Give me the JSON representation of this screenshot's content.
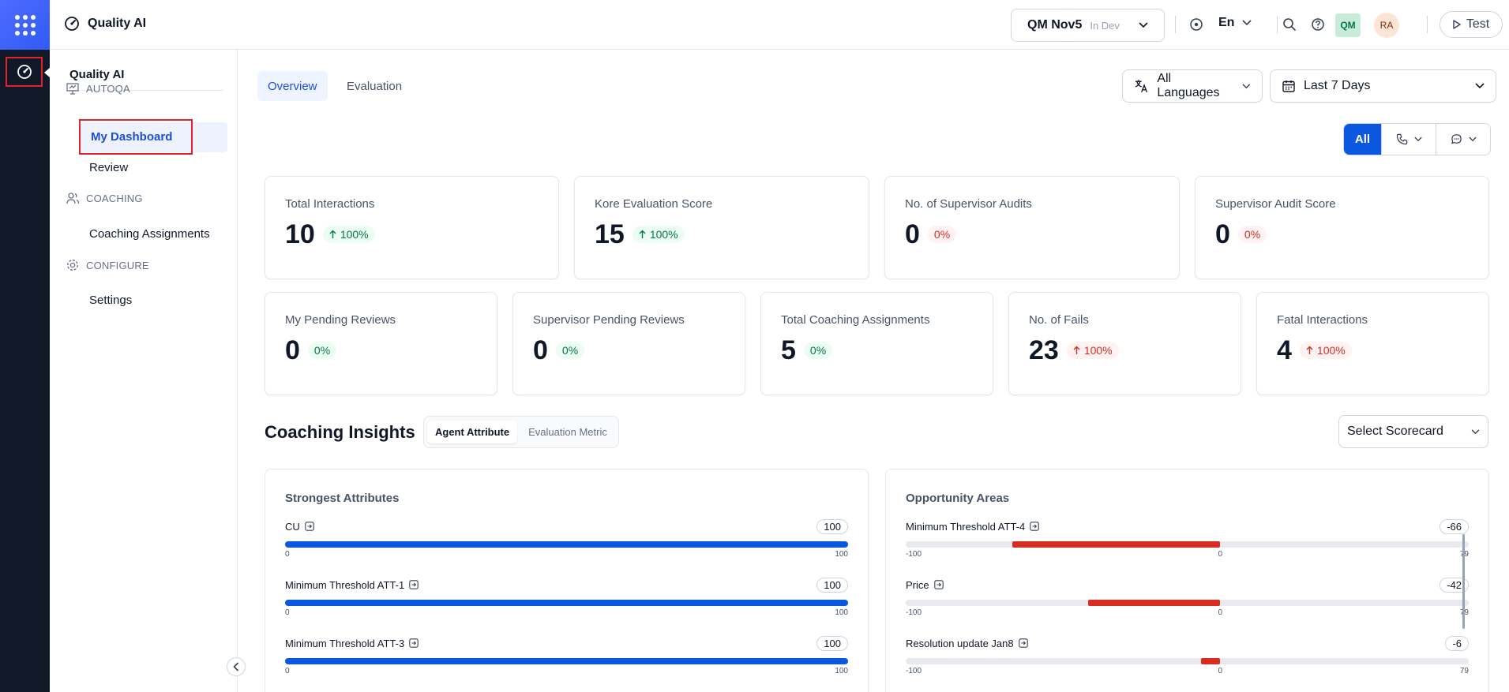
{
  "app": {
    "title": "Quality AI"
  },
  "env": {
    "name": "QM Nov5",
    "tag": "In Dev"
  },
  "topbar": {
    "language": "En",
    "avatar_qm": "QM",
    "avatar_ra": "RA",
    "test_label": "Test"
  },
  "sidebar": {
    "title": "Quality AI",
    "sections": [
      {
        "label": "AUTOQA",
        "icon": "presentation-icon"
      },
      {
        "label": "COACHING",
        "icon": "users-icon"
      },
      {
        "label": "CONFIGURE",
        "icon": "gear-icon"
      }
    ],
    "items": {
      "dashboard": "My Dashboard",
      "review": "Review",
      "coaching_assignments": "Coaching Assignments",
      "settings": "Settings"
    }
  },
  "tabs": [
    "Overview",
    "Evaluation"
  ],
  "filters": {
    "language": "All Languages",
    "date": "Last 7 Days"
  },
  "channel": {
    "all": "All"
  },
  "cards": [
    {
      "label": "Total Interactions",
      "value": "10",
      "change": "100%",
      "trend": "up",
      "tone": "green"
    },
    {
      "label": "Kore Evaluation Score",
      "value": "15",
      "change": "100%",
      "trend": "up",
      "tone": "green"
    },
    {
      "label": "No. of Supervisor Audits",
      "value": "0",
      "change": "0%",
      "trend": "none",
      "tone": "red"
    },
    {
      "label": "Supervisor Audit Score",
      "value": "0",
      "change": "0%",
      "trend": "none",
      "tone": "red"
    },
    {
      "label": "My Pending Reviews",
      "value": "0",
      "change": "0%",
      "trend": "none",
      "tone": "green"
    },
    {
      "label": "Supervisor Pending Reviews",
      "value": "0",
      "change": "0%",
      "trend": "none",
      "tone": "green"
    },
    {
      "label": "Total Coaching Assignments",
      "value": "5",
      "change": "0%",
      "trend": "none",
      "tone": "green"
    },
    {
      "label": "No. of Fails",
      "value": "23",
      "change": "100%",
      "trend": "up",
      "tone": "red"
    },
    {
      "label": "Fatal Interactions",
      "value": "4",
      "change": "100%",
      "trend": "up",
      "tone": "red"
    }
  ],
  "coaching": {
    "title": "Coaching Insights",
    "toggle": [
      "Agent Attribute",
      "Evaluation Metric"
    ],
    "scorecard_placeholder": "Select Scorecard",
    "strongest": {
      "title": "Strongest Attributes",
      "items": [
        {
          "name": "CU",
          "score": 100,
          "fraction": 1.0,
          "min": "0",
          "max": "100"
        },
        {
          "name": "Minimum Threshold ATT-1",
          "score": 100,
          "fraction": 1.0,
          "min": "0",
          "max": "100"
        },
        {
          "name": "Minimum Threshold ATT-3",
          "score": 100,
          "fraction": 1.0,
          "min": "0",
          "max": "100"
        }
      ]
    },
    "opportunity": {
      "title": "Opportunity Areas",
      "items": [
        {
          "name": "Minimum Threshold ATT-4",
          "score": -66,
          "min": "-100",
          "mid": "0",
          "max": "79"
        },
        {
          "name": "Price",
          "score": -42,
          "min": "-100",
          "mid": "0",
          "max": "79"
        },
        {
          "name": "Resolution update Jan8",
          "score": -6,
          "min": "-100",
          "mid": "0",
          "max": "79"
        }
      ]
    }
  },
  "colors": {
    "accent": "#0b57e0",
    "danger": "#d92d20",
    "success": "#067647",
    "rail": "#111827"
  }
}
